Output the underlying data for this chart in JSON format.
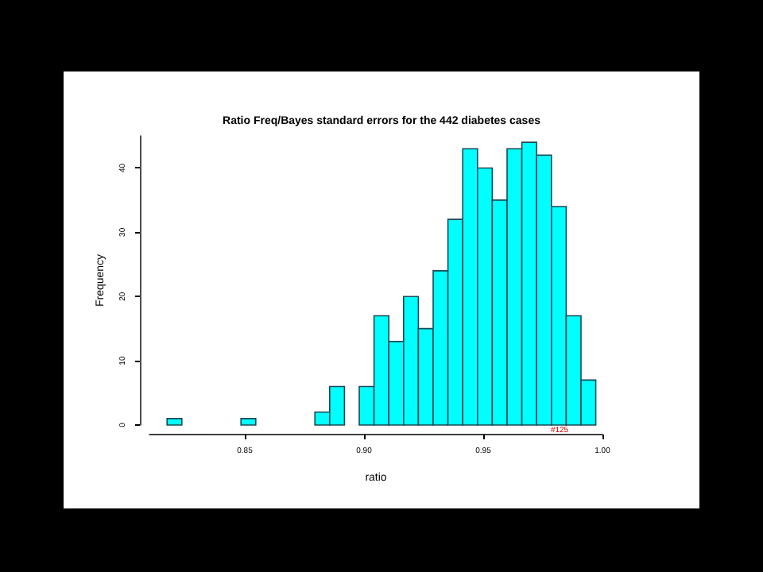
{
  "chart_data": {
    "type": "histogram",
    "title": "Ratio Freq/Bayes standard errors for the 442 diabetes cases",
    "xlabel": "ratio",
    "ylabel": "Frequency",
    "bins": [
      0.8174,
      0.8236,
      0.8298,
      0.836,
      0.8422,
      0.8484,
      0.8546,
      0.8608,
      0.867,
      0.8732,
      0.8794,
      0.8856,
      0.8918,
      0.898,
      0.9042,
      0.9104,
      0.9166,
      0.9228,
      0.929,
      0.9352,
      0.9414,
      0.9476,
      0.9538,
      0.96,
      0.9662,
      0.9724,
      0.9786,
      0.9848,
      0.991,
      0.9972
    ],
    "values": [
      1,
      0,
      0,
      0,
      0,
      1,
      0,
      0,
      0,
      0,
      2,
      6,
      0,
      6,
      17,
      13,
      20,
      15,
      24,
      32,
      43,
      40,
      35,
      43,
      44,
      42,
      34,
      17,
      7
    ],
    "color": "#00ffff",
    "xlim": [
      0.81,
      1.0
    ],
    "xticks": [
      0.85,
      {
        "value": 0.9,
        "label": "0.90"
      },
      0.95,
      {
        "value": 1.0,
        "label": "1.00"
      }
    ],
    "ylim": [
      0,
      45
    ],
    "yticks": [
      0,
      10,
      20,
      30,
      40
    ],
    "annotations": [
      {
        "text": "#125",
        "x": 0.982,
        "y": 0
      }
    ],
    "grid": false
  }
}
